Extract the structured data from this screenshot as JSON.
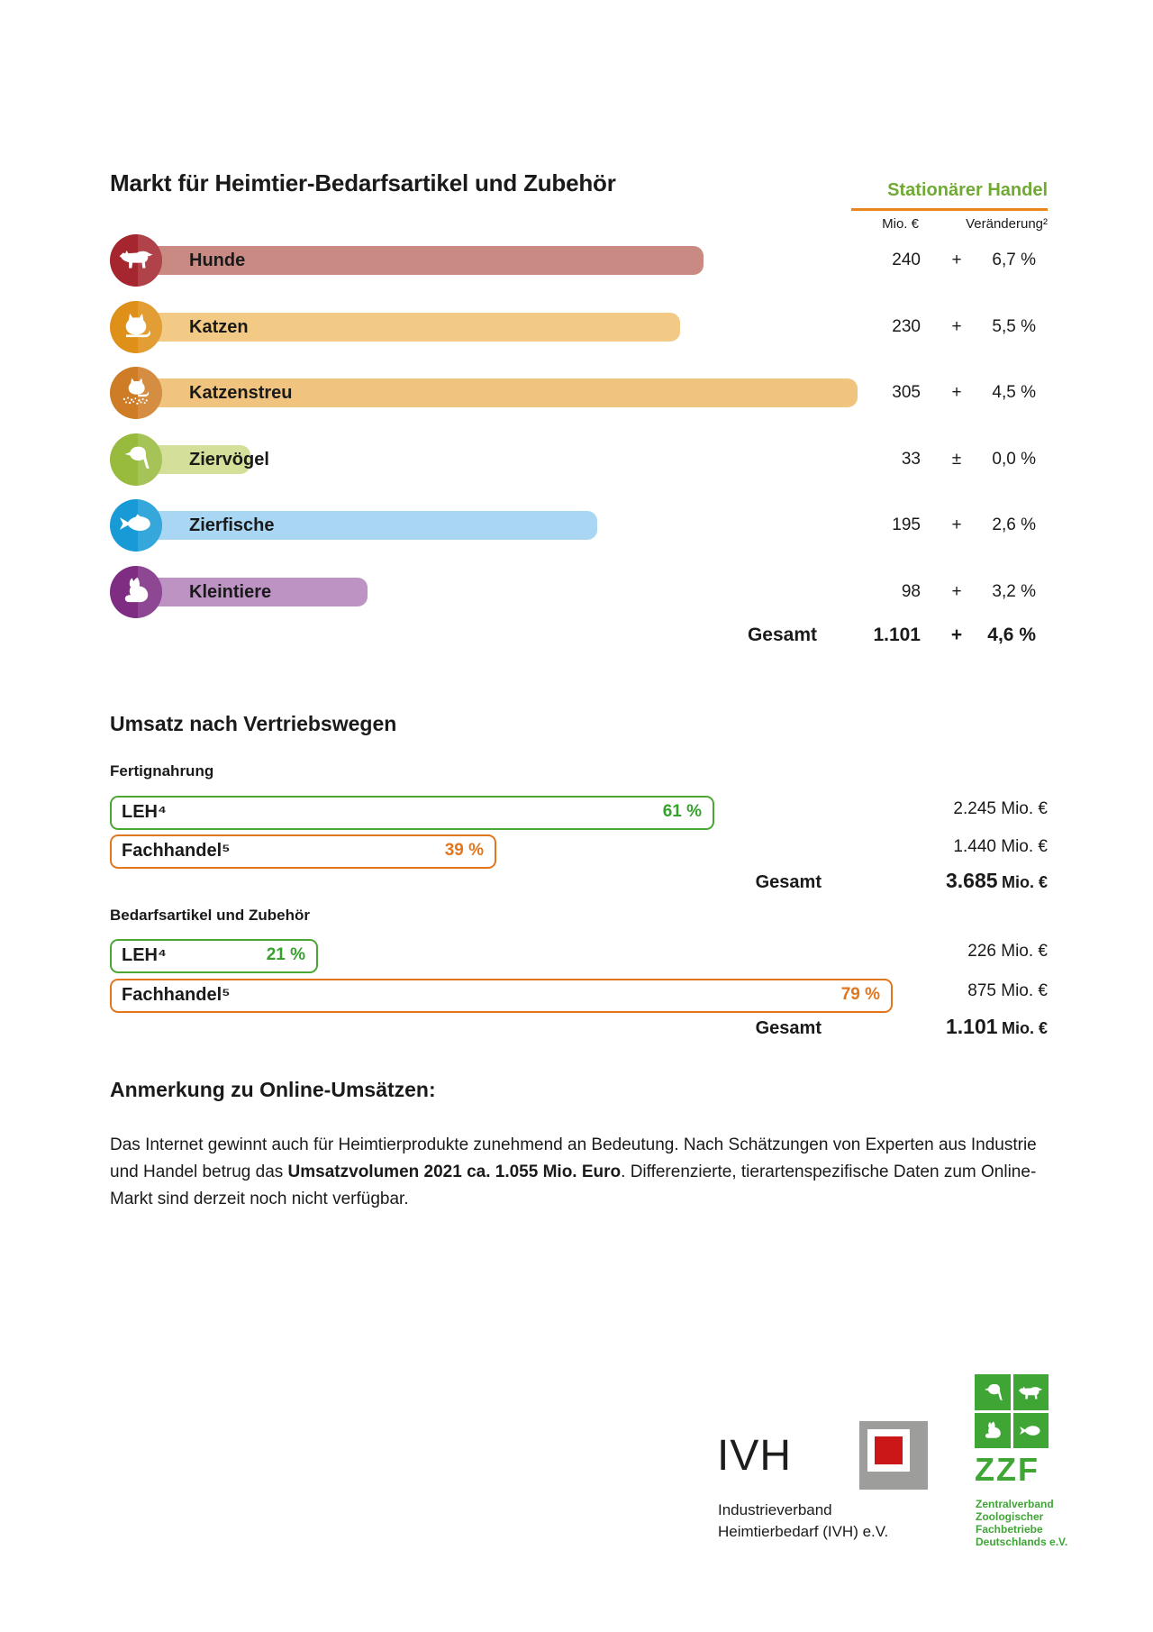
{
  "colors": {
    "green_header": "#70a933",
    "orange_rule": "#e8861c",
    "leh_green": "#4ba733",
    "pct_green": "#36a22d",
    "fachhandel_orange": "#e2761d",
    "ivh_gray": "#9d9d9c",
    "ivh_red": "#cc1719",
    "zzf_green": "#3fa535"
  },
  "stationaer": {
    "title": "Markt für Heimtier-Bedarfsartikel und Zubehör",
    "header": "Stationärer Handel",
    "col_value": "Mio. €",
    "col_change": "Veränderung²",
    "rows": [
      {
        "label": "Hunde",
        "value": 240,
        "value_text": "240",
        "sign": "+",
        "change": "6,7 %",
        "icon_color": "#a5262f",
        "bar_color": "#ca8a84"
      },
      {
        "label": "Katzen",
        "value": 230,
        "value_text": "230",
        "sign": "+",
        "change": "5,5 %",
        "icon_color": "#de9018",
        "bar_color": "#f2ca86"
      },
      {
        "label": "Katzenstreu",
        "value": 305,
        "value_text": "305",
        "sign": "+",
        "change": "4,5 %",
        "icon_color": "#ce7c25",
        "bar_color": "#f0c47f"
      },
      {
        "label": "Ziervögel",
        "value": 33,
        "value_text": "33",
        "sign": "±",
        "change": "0,0 %",
        "icon_color": "#98ba3d",
        "bar_color": "#d4e099"
      },
      {
        "label": "Zierfische",
        "value": 195,
        "value_text": "195",
        "sign": "+",
        "change": "2,6 %",
        "icon_color": "#189ad6",
        "bar_color": "#a9d6f2"
      },
      {
        "label": "Kleintiere",
        "value": 98,
        "value_text": "98",
        "sign": "+",
        "change": "3,2 %",
        "icon_color": "#7e2d83",
        "bar_color": "#bd93c4"
      }
    ],
    "total": {
      "label": "Gesamt",
      "value_text": "1.101",
      "sign": "+",
      "change": "4,6 %"
    }
  },
  "channels": {
    "heading": "Umsatz nach Vertriebswegen",
    "groups": [
      {
        "title": "Fertignahrung",
        "bars": [
          {
            "label": "LEH⁴",
            "pct": 61,
            "pct_text": "61 %",
            "value_text": "2.245",
            "unit": "Mio. €"
          },
          {
            "label": "Fachhandel⁵",
            "pct": 39,
            "pct_text": "39 %",
            "value_text": "1.440",
            "unit": "Mio. €"
          }
        ],
        "total": {
          "label": "Gesamt",
          "value_text": "3.685",
          "unit": "Mio. €"
        }
      },
      {
        "title": "Bedarfsartikel und Zubehör",
        "bars": [
          {
            "label": "LEH⁴",
            "pct": 21,
            "pct_text": "21 %",
            "value_text": "226",
            "unit": "Mio. €"
          },
          {
            "label": "Fachhandel⁵",
            "pct": 79,
            "pct_text": "79 %",
            "value_text": "875",
            "unit": "Mio. €"
          }
        ],
        "total": {
          "label": "Gesamt",
          "value_text": "1.101",
          "unit": "Mio. €"
        }
      }
    ]
  },
  "note": {
    "title": "Anmerkung zu Online-Umsätzen:",
    "text_before": "Das Internet gewinnt auch für Heimtierprodukte zunehmend an Bedeutung. Nach Schätzungen von Experten aus Industrie und Handel betrug das ",
    "text_bold": "Umsatzvolumen 2021 ca. 1.055 Mio. Euro",
    "text_after": ". Differenzierte, tierartenspezifische Daten zum Online-Markt sind derzeit noch nicht verfügbar."
  },
  "footer": {
    "ivh_word": "IVH",
    "ivh_sub1": "Industrieverband",
    "ivh_sub2": "Heimtierbedarf (IVH) e.V.",
    "zzf_word": "ZZF",
    "zzf_sub": "Zentralverband\nZoologischer\nFachbetriebe\nDeutschlands e.V."
  },
  "chart_data": [
    {
      "type": "bar",
      "orientation": "horizontal",
      "title": "Markt für Heimtier-Bedarfsartikel und Zubehör – Stationärer Handel",
      "categories": [
        "Hunde",
        "Katzen",
        "Katzenstreu",
        "Ziervögel",
        "Zierfische",
        "Kleintiere"
      ],
      "series": [
        {
          "name": "Umsatz Mio. €",
          "values": [
            240,
            230,
            305,
            33,
            195,
            98
          ]
        },
        {
          "name": "Veränderung %",
          "values": [
            6.7,
            5.5,
            4.5,
            0.0,
            2.6,
            3.2
          ]
        }
      ],
      "total": {
        "label": "Gesamt",
        "value": 1101,
        "change_pct": 4.6
      },
      "legend_position": "none",
      "grid": false
    },
    {
      "type": "bar",
      "orientation": "horizontal",
      "title": "Umsatz nach Vertriebswegen – Fertignahrung",
      "categories": [
        "LEH",
        "Fachhandel"
      ],
      "series": [
        {
          "name": "Anteil %",
          "values": [
            61,
            39
          ]
        },
        {
          "name": "Umsatz Mio. €",
          "values": [
            2245,
            1440
          ]
        }
      ],
      "total": {
        "label": "Gesamt",
        "value": 3685
      },
      "legend_position": "none",
      "grid": false
    },
    {
      "type": "bar",
      "orientation": "horizontal",
      "title": "Umsatz nach Vertriebswegen – Bedarfsartikel und Zubehör",
      "categories": [
        "LEH",
        "Fachhandel"
      ],
      "series": [
        {
          "name": "Anteil %",
          "values": [
            21,
            79
          ]
        },
        {
          "name": "Umsatz Mio. €",
          "values": [
            226,
            875
          ]
        }
      ],
      "total": {
        "label": "Gesamt",
        "value": 1101
      },
      "legend_position": "none",
      "grid": false
    }
  ]
}
